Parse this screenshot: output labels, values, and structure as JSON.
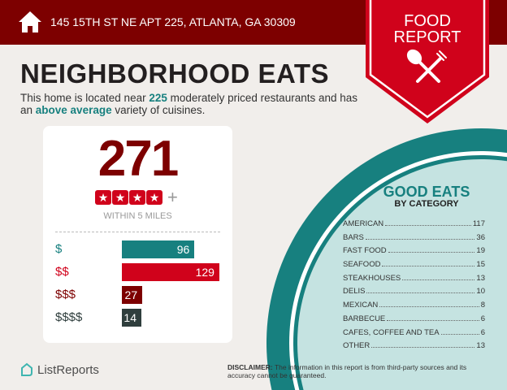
{
  "header": {
    "address": "145 15TH ST NE APT 225, ATLANTA, GA 30309",
    "icon": "home-icon"
  },
  "badge": {
    "line1": "FOOD",
    "line2": "REPORT",
    "icon": "spoon-fork-icon"
  },
  "title": "NEIGHBORHOOD EATS",
  "intro": {
    "p1": "This home is located near ",
    "count": "225",
    "p2": " moderately priced restaurants and has an ",
    "level": "above average",
    "p3": " variety of cuisines."
  },
  "summary": {
    "total": "271",
    "stars": 4,
    "plus": "+",
    "within": "WITHIN 5 MILES"
  },
  "price_levels": [
    {
      "label": "$",
      "value": 96,
      "color": "#17807f"
    },
    {
      "label": "$$",
      "value": 129,
      "color": "#d0021b"
    },
    {
      "label": "$$$",
      "value": 27,
      "color": "#7d0000"
    },
    {
      "label": "$$$$",
      "value": 14,
      "color": "#2f3e3d"
    }
  ],
  "good_eats": {
    "title": "GOOD EATS",
    "subtitle": "BY CATEGORY",
    "categories": [
      {
        "name": "AMERICAN",
        "count": "117"
      },
      {
        "name": "BARS",
        "count": "36"
      },
      {
        "name": "FAST FOOD",
        "count": "19"
      },
      {
        "name": "SEAFOOD",
        "count": "15"
      },
      {
        "name": "STEAKHOUSES",
        "count": "13"
      },
      {
        "name": "DELIS",
        "count": "10"
      },
      {
        "name": "MEXICAN",
        "count": "8"
      },
      {
        "name": "BARBECUE",
        "count": "6"
      },
      {
        "name": "CAFES, COFFEE AND TEA",
        "count": "6"
      },
      {
        "name": "OTHER",
        "count": "13"
      }
    ]
  },
  "footer": {
    "logo": "ListReports",
    "disclaimer_label": "DISCLAIMER:",
    "disclaimer": " The information in this report is from third-party sources and its accuracy cannot be guaranteed."
  },
  "colors": {
    "dark_red": "#7d0000",
    "red": "#d0021b",
    "teal": "#17807f",
    "light_teal": "#c5e3e1"
  }
}
